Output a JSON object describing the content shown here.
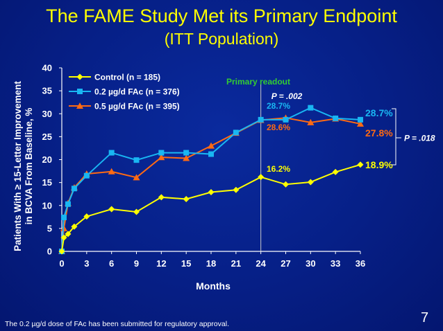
{
  "slide": {
    "title": "The FAME Study Met its Primary Endpoint",
    "subtitle": "(ITT Population)",
    "footnote": "The 0.2 µg/d dose of FAc has been submitted for regulatory approval.",
    "page_number": "7"
  },
  "colors": {
    "title": "#ffff00",
    "control": "#ffff00",
    "low_dose": "#19b6f2",
    "high_dose": "#ff6a13",
    "readout": "#33cc33",
    "axis_text": "#ffffff"
  },
  "chart_data": {
    "type": "line",
    "xlabel": "Months",
    "ylabel_lines": [
      "Patients With ≥ 15-Letter Improvement",
      "in BCVA From Baseline, %"
    ],
    "xlim": [
      0,
      36
    ],
    "ylim": [
      0,
      40
    ],
    "x_ticks": [
      "0",
      "3",
      "6",
      "9",
      "12",
      "15",
      "18",
      "21",
      "24",
      "27",
      "30",
      "33",
      "36"
    ],
    "y_ticks": [
      "0",
      "5",
      "10",
      "15",
      "20",
      "25",
      "30",
      "35",
      "40"
    ],
    "x_tick_values": [
      0,
      3,
      6,
      9,
      12,
      15,
      18,
      21,
      24,
      27,
      30,
      33,
      36
    ],
    "y_tick_values": [
      0,
      5,
      10,
      15,
      20,
      25,
      30,
      35,
      40
    ],
    "series": [
      {
        "key": "control",
        "name": "Control (n = 185)",
        "marker": "diamond",
        "x": [
          0,
          0.25,
          0.75,
          1.5,
          3,
          6,
          9,
          12,
          15,
          18,
          21,
          24,
          27,
          30,
          33,
          36
        ],
        "y": [
          0,
          3.0,
          3.8,
          5.4,
          7.6,
          9.2,
          8.6,
          11.8,
          11.4,
          12.9,
          13.4,
          16.2,
          14.6,
          15.1,
          17.3,
          18.9
        ]
      },
      {
        "key": "low_dose",
        "name": "0.2 µg/d FAc (n = 376)",
        "marker": "square",
        "x": [
          0,
          0.25,
          0.75,
          1.5,
          3,
          6,
          9,
          12,
          15,
          18,
          21,
          24,
          27,
          30,
          33,
          36
        ],
        "y": [
          0,
          7.4,
          10.3,
          13.7,
          16.5,
          21.5,
          19.9,
          21.5,
          21.5,
          21.2,
          25.9,
          28.7,
          28.7,
          31.3,
          29.0,
          28.7
        ]
      },
      {
        "key": "high_dose",
        "name": "0.5 µg/d FAc (n = 395)",
        "marker": "triangle",
        "x": [
          0,
          0.25,
          0.75,
          1.5,
          3,
          6,
          9,
          12,
          15,
          18,
          21,
          24,
          27,
          30,
          33,
          36
        ],
        "y": [
          0,
          5.0,
          10.5,
          13.9,
          16.9,
          17.4,
          16.1,
          20.5,
          20.3,
          23.0,
          25.8,
          28.6,
          29.1,
          28.1,
          28.9,
          27.8
        ]
      }
    ],
    "annotations": {
      "readout_month": 24,
      "readout_label": "Primary readout",
      "p_readout": "P = .002",
      "p_end": "P = .018",
      "at_24": [
        {
          "series": "low_dose",
          "text": "28.7%"
        },
        {
          "series": "high_dose",
          "text": "28.6%"
        },
        {
          "series": "control",
          "text": "16.2%"
        }
      ],
      "at_36": [
        {
          "series": "low_dose",
          "text": "28.7%"
        },
        {
          "series": "high_dose",
          "text": "27.8%"
        },
        {
          "series": "control",
          "text": "18.9%"
        }
      ]
    }
  }
}
